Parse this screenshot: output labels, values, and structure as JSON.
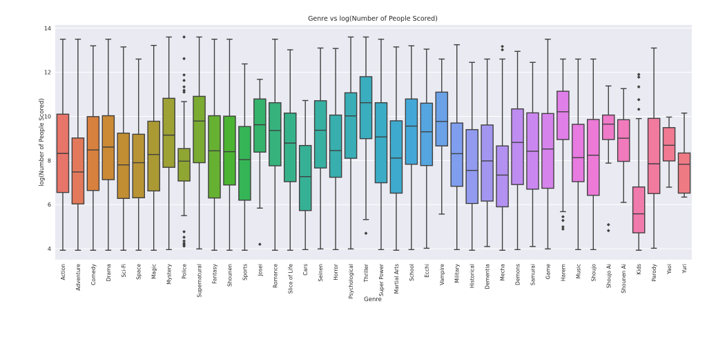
{
  "chart_data": {
    "type": "box",
    "title": "Genre vs log(Number of People Scored)",
    "xlabel": "Genre",
    "ylabel": "log(Number of People Scored)",
    "ylim": [
      3.5,
      14.15
    ],
    "yticks": [
      4,
      6,
      8,
      10,
      12,
      14
    ],
    "grid": true,
    "legend": "none",
    "categories": [
      "Action",
      "Adventure",
      "Comedy",
      "Drama",
      "Sci-Fi",
      "Space",
      "Magic",
      "Mystery",
      "Police",
      "Supernatural",
      "Fantasy",
      "Shounen",
      "Sports",
      "Josei",
      "Romance",
      "Slice of Life",
      "Cars",
      "Seinen",
      "Horror",
      "Psychological",
      "Thriller",
      "Super Power",
      "Martial Arts",
      "School",
      "Ecchi",
      "Vampire",
      "Military",
      "Historical",
      "Dementia",
      "Mecha",
      "Demons",
      "Samurai",
      "Game",
      "Harem",
      "Music",
      "Shoujo",
      "Shoujo Ai",
      "Shounen Ai",
      "Kids",
      "Parody",
      "Yaoi",
      "Yuri"
    ],
    "colors": [
      "#e8756a",
      "#e2795a",
      "#d8803e",
      "#cc8a36",
      "#c28e34",
      "#b89434",
      "#ab9a33",
      "#9ea133",
      "#8fa633",
      "#7bab32",
      "#67b132",
      "#4bb432",
      "#35b556",
      "#35b36c",
      "#36b27d",
      "#36b28a",
      "#36b196",
      "#37b0a2",
      "#38afae",
      "#39aeb6",
      "#3aadbe",
      "#3bacc5",
      "#3eaace",
      "#43a8d8",
      "#54a5e0",
      "#6aa1e7",
      "#7f9eee",
      "#929bf0",
      "#a396f1",
      "#b291f1",
      "#bf8cf1",
      "#cb87f0",
      "#d684ec",
      "#e07fe7",
      "#e77be0",
      "#ec7ad6",
      "#ef7ac9",
      "#f07abb",
      "#f17aad",
      "#f17a9f",
      "#f07a91",
      "#ee7a84"
    ],
    "boxes": [
      {
        "whislo": 3.93,
        "q1": 6.55,
        "med": 8.32,
        "q3": 10.1,
        "whishi": 13.5,
        "fliers": []
      },
      {
        "whislo": 3.93,
        "q1": 6.03,
        "med": 7.48,
        "q3": 9.02,
        "whishi": 13.5,
        "fliers": []
      },
      {
        "whislo": 3.93,
        "q1": 6.64,
        "med": 8.48,
        "q3": 9.99,
        "whishi": 13.2,
        "fliers": []
      },
      {
        "whislo": 3.93,
        "q1": 7.13,
        "med": 8.61,
        "q3": 10.03,
        "whishi": 13.5,
        "fliers": []
      },
      {
        "whislo": 3.93,
        "q1": 6.28,
        "med": 7.8,
        "q3": 9.24,
        "whishi": 13.15,
        "fliers": []
      },
      {
        "whislo": 3.93,
        "q1": 6.31,
        "med": 7.9,
        "q3": 9.19,
        "whishi": 12.6,
        "fliers": []
      },
      {
        "whislo": 3.93,
        "q1": 6.62,
        "med": 8.27,
        "q3": 9.78,
        "whishi": 13.22,
        "fliers": []
      },
      {
        "whislo": 3.96,
        "q1": 7.69,
        "med": 9.15,
        "q3": 10.82,
        "whishi": 13.6,
        "fliers": []
      },
      {
        "whislo": 5.5,
        "q1": 7.07,
        "med": 7.97,
        "q3": 8.54,
        "whishi": 10.67,
        "fliers": [
          13.6,
          12.62,
          11.88,
          11.63,
          11.34,
          11.18,
          11.1,
          4.77,
          4.52,
          4.35,
          4.25,
          4.18,
          4.12
        ]
      },
      {
        "whislo": 3.99,
        "q1": 7.9,
        "med": 9.79,
        "q3": 10.91,
        "whishi": 13.6,
        "fliers": []
      },
      {
        "whislo": 3.93,
        "q1": 6.3,
        "med": 8.44,
        "q3": 10.03,
        "whishi": 13.5,
        "fliers": []
      },
      {
        "whislo": 3.93,
        "q1": 6.89,
        "med": 8.4,
        "q3": 10.01,
        "whishi": 13.5,
        "fliers": []
      },
      {
        "whislo": 3.93,
        "q1": 6.2,
        "med": 8.04,
        "q3": 9.54,
        "whishi": 12.38,
        "fliers": []
      },
      {
        "whislo": 5.84,
        "q1": 8.38,
        "med": 9.62,
        "q3": 10.79,
        "whishi": 11.68,
        "fliers": [
          4.2
        ]
      },
      {
        "whislo": 3.93,
        "q1": 7.76,
        "med": 9.36,
        "q3": 10.62,
        "whishi": 13.5,
        "fliers": []
      },
      {
        "whislo": 3.93,
        "q1": 7.04,
        "med": 8.79,
        "q3": 10.15,
        "whishi": 13.02,
        "fliers": []
      },
      {
        "whislo": 3.96,
        "q1": 5.73,
        "med": 7.27,
        "q3": 8.68,
        "whishi": 10.72,
        "fliers": []
      },
      {
        "whislo": 3.99,
        "q1": 7.66,
        "med": 9.37,
        "q3": 10.71,
        "whishi": 13.1,
        "fliers": []
      },
      {
        "whislo": 3.96,
        "q1": 7.24,
        "med": 8.45,
        "q3": 10.06,
        "whishi": 13.08,
        "fliers": []
      },
      {
        "whislo": 3.99,
        "q1": 8.1,
        "med": 10.02,
        "q3": 11.07,
        "whishi": 13.6,
        "fliers": []
      },
      {
        "whislo": 5.32,
        "q1": 8.99,
        "med": 10.62,
        "q3": 11.8,
        "whishi": 13.6,
        "fliers": [
          4.7
        ]
      },
      {
        "whislo": 3.96,
        "q1": 6.99,
        "med": 9.07,
        "q3": 10.62,
        "whishi": 13.5,
        "fliers": []
      },
      {
        "whislo": 3.93,
        "q1": 6.52,
        "med": 8.11,
        "q3": 9.8,
        "whishi": 13.15,
        "fliers": []
      },
      {
        "whislo": 3.96,
        "q1": 7.83,
        "med": 9.56,
        "q3": 10.79,
        "whishi": 13.2,
        "fliers": []
      },
      {
        "whislo": 4.02,
        "q1": 7.77,
        "med": 9.3,
        "q3": 10.6,
        "whishi": 13.05,
        "fliers": []
      },
      {
        "whislo": 5.57,
        "q1": 8.66,
        "med": 9.77,
        "q3": 11.1,
        "whishi": 12.6,
        "fliers": []
      },
      {
        "whislo": 3.96,
        "q1": 6.83,
        "med": 8.31,
        "q3": 9.7,
        "whishi": 13.25,
        "fliers": []
      },
      {
        "whislo": 3.93,
        "q1": 6.05,
        "med": 7.55,
        "q3": 9.4,
        "whishi": 12.45,
        "fliers": []
      },
      {
        "whislo": 4.1,
        "q1": 6.16,
        "med": 7.98,
        "q3": 9.61,
        "whishi": 12.6,
        "fliers": []
      },
      {
        "whislo": 3.93,
        "q1": 5.9,
        "med": 7.34,
        "q3": 8.66,
        "whishi": 12.6,
        "fliers": [
          13.17,
          13.02
        ]
      },
      {
        "whislo": 3.96,
        "q1": 6.91,
        "med": 8.82,
        "q3": 10.34,
        "whishi": 12.95,
        "fliers": []
      },
      {
        "whislo": 4.1,
        "q1": 6.7,
        "med": 8.42,
        "q3": 10.16,
        "whishi": 12.45,
        "fliers": []
      },
      {
        "whislo": 3.99,
        "q1": 6.74,
        "med": 8.52,
        "q3": 10.13,
        "whishi": 13.5,
        "fliers": []
      },
      {
        "whislo": 5.68,
        "q1": 8.95,
        "med": 10.21,
        "q3": 11.14,
        "whishi": 12.6,
        "fliers": [
          5.45,
          5.28,
          4.99,
          4.89
        ]
      },
      {
        "whislo": 3.96,
        "q1": 7.04,
        "med": 8.13,
        "q3": 9.64,
        "whishi": 12.6,
        "fliers": []
      },
      {
        "whislo": 3.96,
        "q1": 6.42,
        "med": 8.24,
        "q3": 9.86,
        "whishi": 12.6,
        "fliers": []
      },
      {
        "whislo": 7.88,
        "q1": 8.95,
        "med": 9.65,
        "q3": 10.06,
        "whishi": 11.38,
        "fliers": [
          5.09,
          4.82
        ]
      },
      {
        "whislo": 6.1,
        "q1": 7.96,
        "med": 9.01,
        "q3": 9.85,
        "whishi": 11.26,
        "fliers": []
      },
      {
        "whislo": 3.93,
        "q1": 4.72,
        "med": 5.58,
        "q3": 6.8,
        "whishi": 9.9,
        "fliers": [
          11.9,
          11.78,
          11.34,
          10.76,
          10.32
        ]
      },
      {
        "whislo": 4.02,
        "q1": 6.5,
        "med": 7.85,
        "q3": 9.91,
        "whishi": 13.1,
        "fliers": []
      },
      {
        "whislo": 6.79,
        "q1": 7.98,
        "med": 8.69,
        "q3": 9.49,
        "whishi": 9.97,
        "fliers": []
      },
      {
        "whislo": 6.34,
        "q1": 6.52,
        "med": 7.83,
        "q3": 8.34,
        "whishi": 10.15,
        "fliers": []
      }
    ]
  }
}
